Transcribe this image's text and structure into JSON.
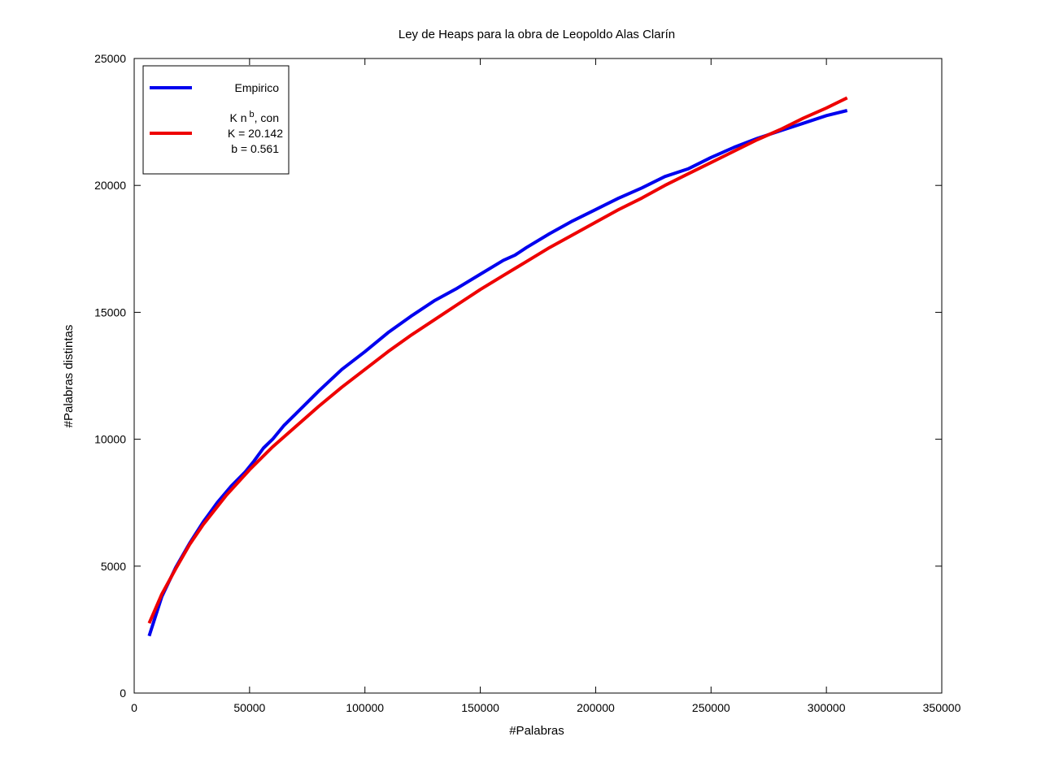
{
  "chart_data": {
    "type": "line",
    "title": "Ley de Heaps para la obra de Leopoldo Alas Clarín",
    "xlabel": "#Palabras",
    "ylabel": "#Palabras distintas",
    "xlim": [
      0,
      350000
    ],
    "ylim": [
      0,
      25000
    ],
    "xticks": [
      0,
      50000,
      100000,
      150000,
      200000,
      250000,
      300000,
      350000
    ],
    "yticks": [
      0,
      5000,
      10000,
      15000,
      20000,
      25000
    ],
    "grid": false,
    "legend_position": "top-left",
    "legend": {
      "empirico": "Empirico",
      "fit_line1": "K n",
      "fit_exp": "b",
      "fit_line1_suffix": ", con",
      "fit_line2": "K = 20.142",
      "fit_line3": "b = 0.561"
    },
    "series": [
      {
        "name": "Empirico",
        "color": "#0000ee",
        "x": [
          6500,
          12000,
          18000,
          24000,
          30000,
          36000,
          42000,
          48000,
          52000,
          56000,
          60000,
          65000,
          70000,
          75000,
          80000,
          90000,
          100000,
          110000,
          120000,
          130000,
          140000,
          150000,
          160000,
          165000,
          170000,
          180000,
          190000,
          200000,
          210000,
          220000,
          230000,
          240000,
          250000,
          260000,
          270000,
          280000,
          290000,
          300000,
          309000
        ],
        "y": [
          2250,
          3800,
          4950,
          5900,
          6750,
          7500,
          8150,
          8700,
          9150,
          9650,
          10000,
          10550,
          11000,
          11450,
          11900,
          12750,
          13450,
          14200,
          14850,
          15450,
          15950,
          16500,
          17050,
          17250,
          17550,
          18100,
          18600,
          19050,
          19500,
          19900,
          20350,
          20650,
          21100,
          21500,
          21850,
          22150,
          22450,
          22750,
          22950
        ]
      },
      {
        "name": "K n^b, con K = 20.142 b = 0.561",
        "color": "#ee0000",
        "x": [
          6500,
          12000,
          18000,
          24000,
          30000,
          40000,
          50000,
          60000,
          70000,
          80000,
          90000,
          100000,
          110000,
          120000,
          130000,
          140000,
          150000,
          160000,
          170000,
          180000,
          190000,
          200000,
          210000,
          220000,
          230000,
          240000,
          250000,
          260000,
          270000,
          280000,
          290000,
          300000,
          309000
        ],
        "y": [
          2750,
          3900,
          4900,
          5850,
          6650,
          7800,
          8800,
          9700,
          10500,
          11300,
          12050,
          12750,
          13450,
          14100,
          14700,
          15300,
          15900,
          16450,
          17000,
          17550,
          18050,
          18550,
          19050,
          19500,
          20000,
          20450,
          20900,
          21350,
          21800,
          22200,
          22650,
          23050,
          23450
        ]
      }
    ]
  }
}
